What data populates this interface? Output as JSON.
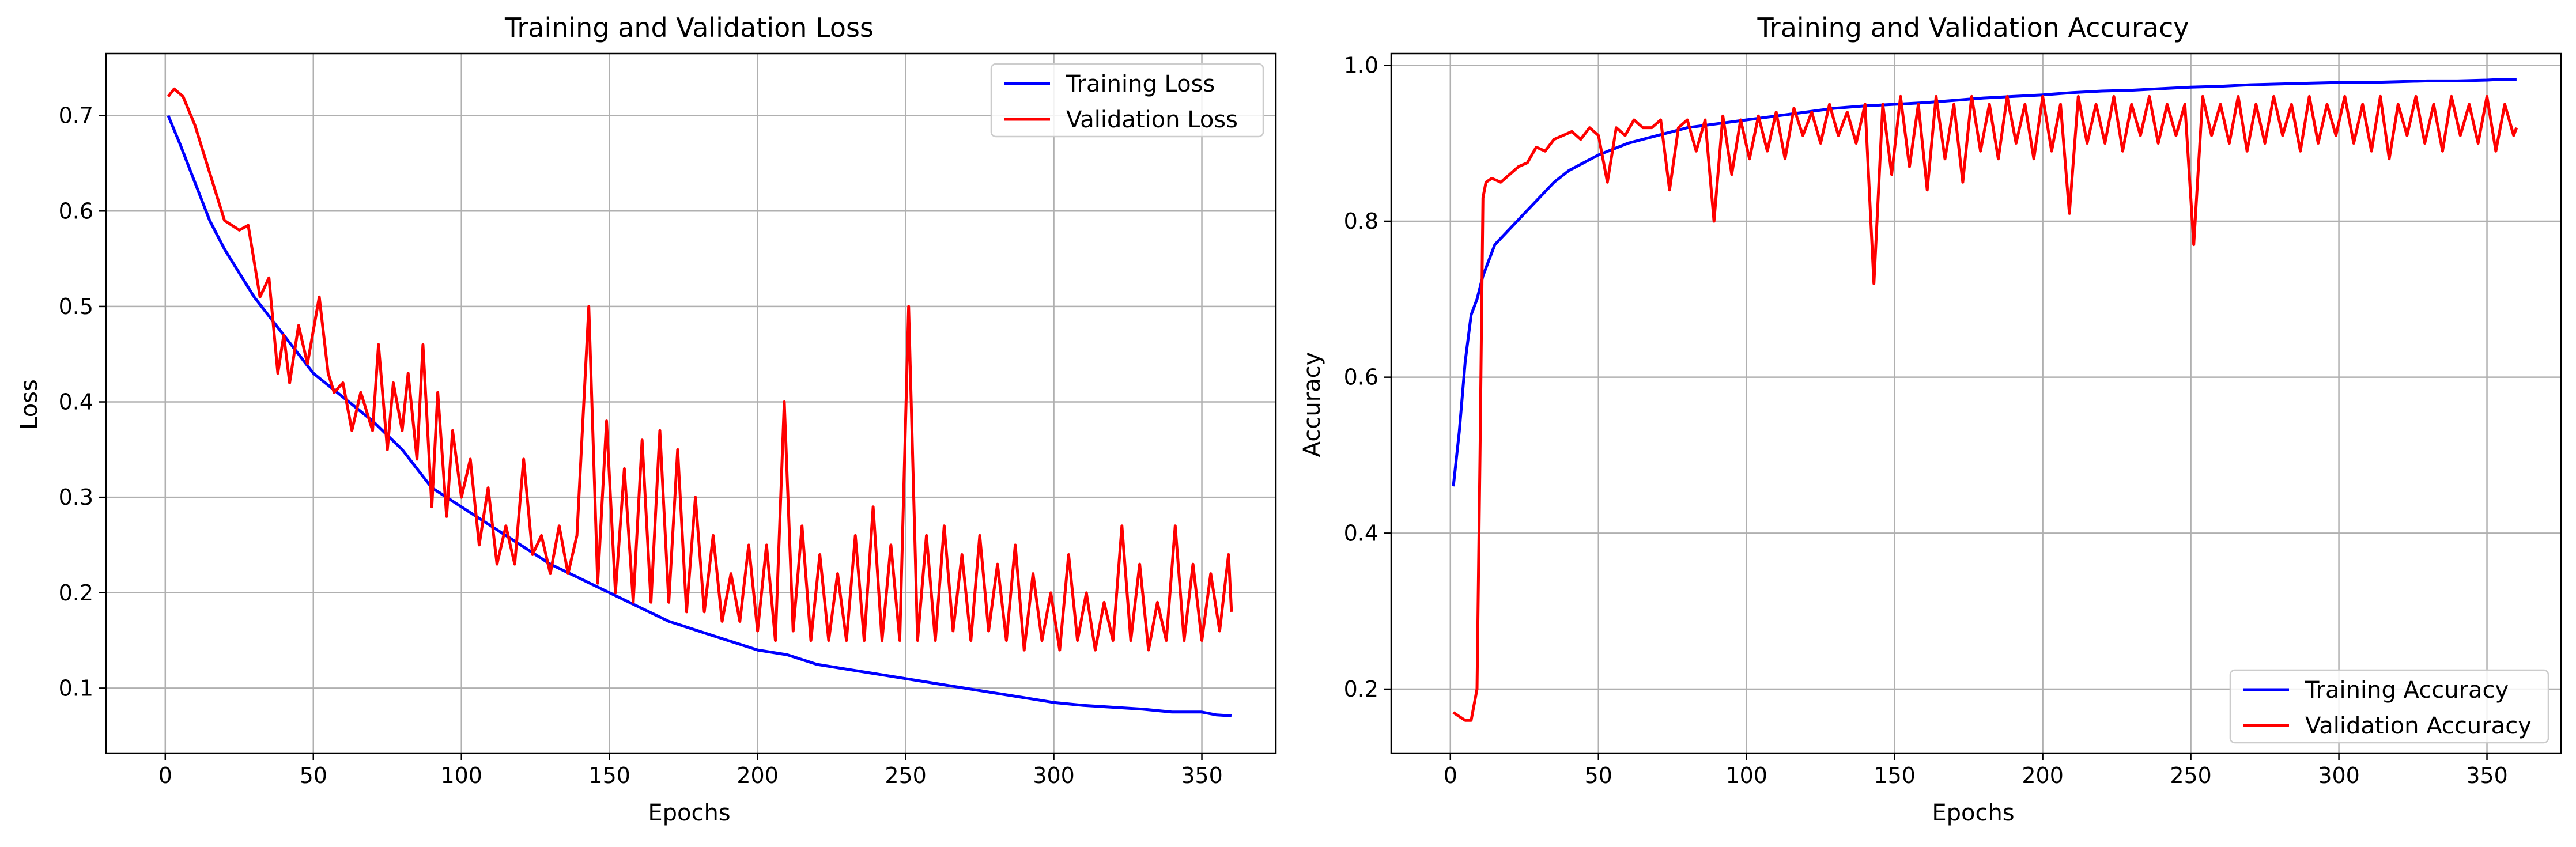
{
  "colors": {
    "training": "#0000ff",
    "validation": "#ff0000",
    "grid": "#b0b0b0"
  },
  "chart_data": [
    {
      "type": "line",
      "title": "Training and Validation Loss",
      "xlabel": "Epochs",
      "ylabel": "Loss",
      "xlim": [
        -20,
        375
      ],
      "ylim": [
        0.032,
        0.765
      ],
      "xticks": [
        0,
        50,
        100,
        150,
        200,
        250,
        300,
        350
      ],
      "yticks": [
        0.1,
        0.2,
        0.3,
        0.4,
        0.5,
        0.6,
        0.7
      ],
      "ytick_labels": [
        "0.1",
        "0.2",
        "0.3",
        "0.4",
        "0.5",
        "0.6",
        "0.7"
      ],
      "grid": true,
      "legend": "upper right",
      "series": [
        {
          "name": "Training Loss",
          "color": "#0000ff",
          "x": [
            1,
            5,
            10,
            15,
            20,
            30,
            40,
            50,
            60,
            70,
            80,
            90,
            100,
            110,
            120,
            130,
            140,
            150,
            160,
            170,
            180,
            190,
            200,
            210,
            220,
            230,
            240,
            250,
            260,
            270,
            280,
            290,
            300,
            310,
            320,
            330,
            340,
            350,
            355,
            360
          ],
          "y": [
            0.7,
            0.67,
            0.63,
            0.59,
            0.56,
            0.51,
            0.47,
            0.43,
            0.405,
            0.38,
            0.35,
            0.31,
            0.29,
            0.27,
            0.25,
            0.23,
            0.215,
            0.2,
            0.185,
            0.17,
            0.16,
            0.15,
            0.14,
            0.135,
            0.125,
            0.12,
            0.115,
            0.11,
            0.105,
            0.1,
            0.095,
            0.09,
            0.085,
            0.082,
            0.08,
            0.078,
            0.075,
            0.075,
            0.072,
            0.071
          ]
        },
        {
          "name": "Validation Loss",
          "color": "#ff0000",
          "x": [
            1,
            3,
            6,
            10,
            15,
            20,
            25,
            28,
            32,
            35,
            38,
            40,
            42,
            45,
            48,
            52,
            55,
            57,
            60,
            63,
            66,
            70,
            72,
            75,
            77,
            80,
            82,
            85,
            87,
            90,
            92,
            95,
            97,
            100,
            103,
            106,
            109,
            112,
            115,
            118,
            121,
            124,
            127,
            130,
            133,
            136,
            139,
            143,
            146,
            149,
            152,
            155,
            158,
            161,
            164,
            167,
            170,
            173,
            176,
            179,
            182,
            185,
            188,
            191,
            194,
            197,
            200,
            203,
            206,
            209,
            212,
            215,
            218,
            221,
            224,
            227,
            230,
            233,
            236,
            239,
            242,
            245,
            248,
            251,
            254,
            257,
            260,
            263,
            266,
            269,
            272,
            275,
            278,
            281,
            284,
            287,
            290,
            293,
            296,
            299,
            302,
            305,
            308,
            311,
            314,
            317,
            320,
            323,
            326,
            329,
            332,
            335,
            338,
            341,
            344,
            347,
            350,
            353,
            356,
            359,
            360
          ],
          "y": [
            0.72,
            0.728,
            0.72,
            0.69,
            0.64,
            0.59,
            0.58,
            0.585,
            0.51,
            0.53,
            0.43,
            0.47,
            0.42,
            0.48,
            0.44,
            0.51,
            0.43,
            0.41,
            0.42,
            0.37,
            0.41,
            0.37,
            0.46,
            0.35,
            0.42,
            0.37,
            0.43,
            0.34,
            0.46,
            0.29,
            0.41,
            0.28,
            0.37,
            0.3,
            0.34,
            0.25,
            0.31,
            0.23,
            0.27,
            0.23,
            0.34,
            0.24,
            0.26,
            0.22,
            0.27,
            0.22,
            0.26,
            0.5,
            0.21,
            0.38,
            0.2,
            0.33,
            0.19,
            0.36,
            0.19,
            0.37,
            0.19,
            0.35,
            0.18,
            0.3,
            0.18,
            0.26,
            0.17,
            0.22,
            0.17,
            0.25,
            0.16,
            0.25,
            0.15,
            0.4,
            0.16,
            0.27,
            0.15,
            0.24,
            0.15,
            0.22,
            0.15,
            0.26,
            0.15,
            0.29,
            0.15,
            0.25,
            0.15,
            0.5,
            0.15,
            0.26,
            0.15,
            0.27,
            0.16,
            0.24,
            0.15,
            0.26,
            0.16,
            0.23,
            0.15,
            0.25,
            0.14,
            0.22,
            0.15,
            0.2,
            0.14,
            0.24,
            0.15,
            0.2,
            0.14,
            0.19,
            0.15,
            0.27,
            0.15,
            0.23,
            0.14,
            0.19,
            0.15,
            0.27,
            0.15,
            0.23,
            0.15,
            0.22,
            0.16,
            0.24,
            0.18
          ]
        }
      ]
    },
    {
      "type": "line",
      "title": "Training and Validation Accuracy",
      "xlabel": "Epochs",
      "ylabel": "Accuracy",
      "xlim": [
        -20,
        375
      ],
      "ylim": [
        0.118,
        1.015
      ],
      "xticks": [
        0,
        50,
        100,
        150,
        200,
        250,
        300,
        350
      ],
      "yticks": [
        0.2,
        0.4,
        0.6,
        0.8,
        1.0
      ],
      "ytick_labels": [
        "0.2",
        "0.4",
        "0.6",
        "0.8",
        "1.0"
      ],
      "grid": true,
      "legend": "lower right",
      "series": [
        {
          "name": "Training Accuracy",
          "color": "#0000ff",
          "x": [
            1,
            3,
            5,
            7,
            9,
            11,
            13,
            15,
            20,
            25,
            30,
            35,
            40,
            45,
            50,
            60,
            70,
            80,
            90,
            100,
            110,
            120,
            130,
            140,
            150,
            160,
            170,
            180,
            190,
            200,
            210,
            220,
            230,
            240,
            250,
            260,
            270,
            280,
            290,
            300,
            310,
            320,
            330,
            340,
            350,
            355,
            360
          ],
          "y": [
            0.46,
            0.53,
            0.62,
            0.68,
            0.7,
            0.73,
            0.75,
            0.77,
            0.79,
            0.81,
            0.83,
            0.85,
            0.865,
            0.875,
            0.885,
            0.9,
            0.91,
            0.92,
            0.925,
            0.93,
            0.935,
            0.94,
            0.945,
            0.948,
            0.95,
            0.952,
            0.955,
            0.958,
            0.96,
            0.962,
            0.965,
            0.967,
            0.968,
            0.97,
            0.972,
            0.973,
            0.975,
            0.976,
            0.977,
            0.978,
            0.978,
            0.979,
            0.98,
            0.98,
            0.981,
            0.982,
            0.982
          ]
        },
        {
          "name": "Validation Accuracy",
          "color": "#ff0000",
          "x": [
            1,
            3,
            5,
            7,
            9,
            10,
            11,
            12,
            14,
            17,
            20,
            23,
            26,
            29,
            32,
            35,
            38,
            41,
            44,
            47,
            50,
            53,
            56,
            59,
            62,
            65,
            68,
            71,
            74,
            77,
            80,
            83,
            86,
            89,
            92,
            95,
            98,
            101,
            104,
            107,
            110,
            113,
            116,
            119,
            122,
            125,
            128,
            131,
            134,
            137,
            140,
            143,
            146,
            149,
            152,
            155,
            158,
            161,
            164,
            167,
            170,
            173,
            176,
            179,
            182,
            185,
            188,
            191,
            194,
            197,
            200,
            203,
            206,
            209,
            212,
            215,
            218,
            221,
            224,
            227,
            230,
            233,
            236,
            239,
            242,
            245,
            248,
            251,
            254,
            257,
            260,
            263,
            266,
            269,
            272,
            275,
            278,
            281,
            284,
            287,
            290,
            293,
            296,
            299,
            302,
            305,
            308,
            311,
            314,
            317,
            320,
            323,
            326,
            329,
            332,
            335,
            338,
            341,
            344,
            347,
            350,
            353,
            356,
            359,
            360
          ],
          "y": [
            0.17,
            0.165,
            0.16,
            0.16,
            0.2,
            0.5,
            0.83,
            0.85,
            0.855,
            0.85,
            0.86,
            0.87,
            0.875,
            0.895,
            0.89,
            0.905,
            0.91,
            0.915,
            0.905,
            0.92,
            0.91,
            0.85,
            0.92,
            0.91,
            0.93,
            0.92,
            0.92,
            0.93,
            0.84,
            0.92,
            0.93,
            0.89,
            0.93,
            0.8,
            0.935,
            0.86,
            0.93,
            0.88,
            0.935,
            0.89,
            0.94,
            0.88,
            0.945,
            0.91,
            0.94,
            0.9,
            0.95,
            0.91,
            0.94,
            0.9,
            0.95,
            0.72,
            0.95,
            0.86,
            0.96,
            0.87,
            0.95,
            0.84,
            0.96,
            0.88,
            0.95,
            0.85,
            0.96,
            0.89,
            0.95,
            0.88,
            0.96,
            0.9,
            0.95,
            0.88,
            0.96,
            0.89,
            0.95,
            0.81,
            0.96,
            0.9,
            0.95,
            0.9,
            0.96,
            0.89,
            0.95,
            0.91,
            0.96,
            0.9,
            0.95,
            0.91,
            0.95,
            0.77,
            0.96,
            0.91,
            0.95,
            0.9,
            0.96,
            0.89,
            0.95,
            0.9,
            0.96,
            0.91,
            0.95,
            0.89,
            0.96,
            0.9,
            0.95,
            0.91,
            0.96,
            0.9,
            0.95,
            0.89,
            0.96,
            0.88,
            0.95,
            0.91,
            0.96,
            0.9,
            0.95,
            0.89,
            0.96,
            0.91,
            0.95,
            0.9,
            0.96,
            0.89,
            0.95,
            0.91,
            0.92
          ]
        }
      ]
    }
  ]
}
